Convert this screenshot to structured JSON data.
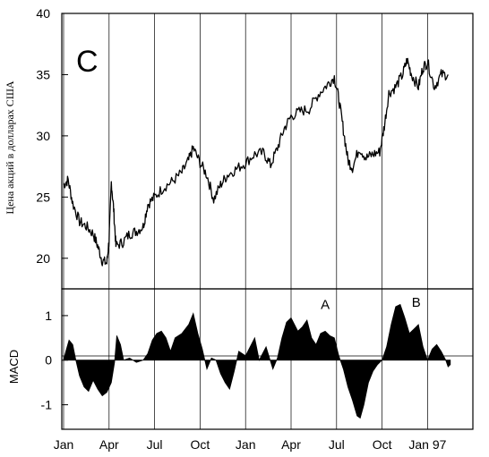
{
  "chart_data": [
    {
      "type": "line",
      "panel_label": "C",
      "ylabel": "Цена акций в долларах США",
      "ylim": [
        17.5,
        40
      ],
      "yticks": [
        "20",
        "25",
        "30",
        "35",
        "40"
      ],
      "x_categories": [
        "Jan",
        "Apr",
        "Jul",
        "Oct",
        "Jan",
        "Apr",
        "Jul",
        "Oct",
        "Jan 97"
      ],
      "grid": "vertical lines at quarter starts",
      "series": [
        {
          "values": [
            [
              0.0,
              26.0
            ],
            [
              0.1,
              26.4
            ],
            [
              0.2,
              24.5
            ],
            [
              0.35,
              23.0
            ],
            [
              0.5,
              22.6
            ],
            [
              0.65,
              22.0
            ],
            [
              0.75,
              21.0
            ],
            [
              0.85,
              19.8
            ],
            [
              0.95,
              19.6
            ],
            [
              1.0,
              21.5
            ],
            [
              1.05,
              26.2
            ],
            [
              1.1,
              24.0
            ],
            [
              1.15,
              21.0
            ],
            [
              1.3,
              21.3
            ],
            [
              1.45,
              22.0
            ],
            [
              1.6,
              22.2
            ],
            [
              1.75,
              22.6
            ],
            [
              1.85,
              24.4
            ],
            [
              2.0,
              25.0
            ],
            [
              2.2,
              25.8
            ],
            [
              2.4,
              26.3
            ],
            [
              2.6,
              27.0
            ],
            [
              2.75,
              28.0
            ],
            [
              2.85,
              29.0
            ],
            [
              3.0,
              27.8
            ],
            [
              3.15,
              26.8
            ],
            [
              3.3,
              24.8
            ],
            [
              3.45,
              26.0
            ],
            [
              3.6,
              26.8
            ],
            [
              3.8,
              27.3
            ],
            [
              4.0,
              27.8
            ],
            [
              4.2,
              28.5
            ],
            [
              4.4,
              28.6
            ],
            [
              4.55,
              27.6
            ],
            [
              4.7,
              29.0
            ],
            [
              4.85,
              30.6
            ],
            [
              5.0,
              31.6
            ],
            [
              5.2,
              32.0
            ],
            [
              5.4,
              32.2
            ],
            [
              5.6,
              33.4
            ],
            [
              5.8,
              34.2
            ],
            [
              5.95,
              34.8
            ],
            [
              6.05,
              33.0
            ],
            [
              6.15,
              30.5
            ],
            [
              6.25,
              28.0
            ],
            [
              6.35,
              27.4
            ],
            [
              6.5,
              29.0
            ],
            [
              6.65,
              28.2
            ],
            [
              6.8,
              28.5
            ],
            [
              6.95,
              28.7
            ],
            [
              7.05,
              30.8
            ],
            [
              7.15,
              33.5
            ],
            [
              7.3,
              34.0
            ],
            [
              7.45,
              35.0
            ],
            [
              7.55,
              36.2
            ],
            [
              7.65,
              35.0
            ],
            [
              7.8,
              34.0
            ],
            [
              7.9,
              35.6
            ],
            [
              8.0,
              36.0
            ],
            [
              8.15,
              34.0
            ],
            [
              8.3,
              35.0
            ],
            [
              8.45,
              35.0
            ]
          ]
        }
      ]
    },
    {
      "type": "area",
      "ylabel": "MACD",
      "ylim": [
        -1.55,
        1.6
      ],
      "yticks": [
        "1",
        "0",
        "-1"
      ],
      "x_categories": [
        "Jan",
        "Apr",
        "Jul",
        "Oct",
        "Jan",
        "Apr",
        "Jul",
        "Oct",
        "Jan 97"
      ],
      "annotations": [
        {
          "text": "A",
          "x": 5.75,
          "y": 1.15
        },
        {
          "text": "B",
          "x": 7.75,
          "y": 1.2
        }
      ],
      "series": [
        {
          "values": [
            [
              0.0,
              0.0
            ],
            [
              0.05,
              0.2
            ],
            [
              0.12,
              0.45
            ],
            [
              0.2,
              0.35
            ],
            [
              0.27,
              0.0
            ],
            [
              0.35,
              -0.35
            ],
            [
              0.45,
              -0.6
            ],
            [
              0.55,
              -0.7
            ],
            [
              0.65,
              -0.45
            ],
            [
              0.75,
              -0.65
            ],
            [
              0.85,
              -0.8
            ],
            [
              0.95,
              -0.72
            ],
            [
              1.05,
              -0.5
            ],
            [
              1.12,
              -0.05
            ],
            [
              1.17,
              0.55
            ],
            [
              1.25,
              0.35
            ],
            [
              1.32,
              0.0
            ],
            [
              1.45,
              0.05
            ],
            [
              1.6,
              -0.05
            ],
            [
              1.75,
              0.0
            ],
            [
              1.85,
              0.15
            ],
            [
              1.95,
              0.45
            ],
            [
              2.05,
              0.6
            ],
            [
              2.15,
              0.65
            ],
            [
              2.25,
              0.5
            ],
            [
              2.35,
              0.2
            ],
            [
              2.45,
              0.5
            ],
            [
              2.6,
              0.6
            ],
            [
              2.75,
              0.8
            ],
            [
              2.85,
              1.05
            ],
            [
              2.95,
              0.6
            ],
            [
              3.05,
              0.25
            ],
            [
              3.15,
              -0.2
            ],
            [
              3.25,
              0.05
            ],
            [
              3.35,
              0.0
            ],
            [
              3.45,
              -0.3
            ],
            [
              3.55,
              -0.5
            ],
            [
              3.65,
              -0.65
            ],
            [
              3.75,
              -0.25
            ],
            [
              3.85,
              0.2
            ],
            [
              4.0,
              0.1
            ],
            [
              4.1,
              0.3
            ],
            [
              4.2,
              0.5
            ],
            [
              4.3,
              0.0
            ],
            [
              4.45,
              0.3
            ],
            [
              4.6,
              -0.2
            ],
            [
              4.7,
              0.05
            ],
            [
              4.8,
              0.5
            ],
            [
              4.9,
              0.85
            ],
            [
              5.0,
              0.95
            ],
            [
              5.15,
              0.65
            ],
            [
              5.25,
              0.75
            ],
            [
              5.35,
              0.9
            ],
            [
              5.45,
              0.5
            ],
            [
              5.55,
              0.35
            ],
            [
              5.65,
              0.6
            ],
            [
              5.75,
              0.65
            ],
            [
              5.85,
              0.55
            ],
            [
              5.95,
              0.5
            ],
            [
              6.05,
              0.1
            ],
            [
              6.15,
              -0.2
            ],
            [
              6.25,
              -0.6
            ],
            [
              6.35,
              -0.9
            ],
            [
              6.45,
              -1.25
            ],
            [
              6.52,
              -1.3
            ],
            [
              6.6,
              -1.0
            ],
            [
              6.7,
              -0.5
            ],
            [
              6.8,
              -0.25
            ],
            [
              6.9,
              -0.1
            ],
            [
              7.0,
              0.0
            ],
            [
              7.1,
              0.3
            ],
            [
              7.2,
              0.8
            ],
            [
              7.3,
              1.2
            ],
            [
              7.4,
              1.25
            ],
            [
              7.5,
              0.95
            ],
            [
              7.6,
              0.6
            ],
            [
              7.7,
              0.7
            ],
            [
              7.8,
              0.8
            ],
            [
              7.9,
              0.3
            ],
            [
              8.0,
              0.0
            ],
            [
              8.1,
              0.25
            ],
            [
              8.2,
              0.35
            ],
            [
              8.3,
              0.2
            ],
            [
              8.4,
              0.0
            ],
            [
              8.45,
              -0.15
            ],
            [
              8.5,
              -0.1
            ]
          ]
        }
      ]
    }
  ],
  "colors": {
    "ink": "#000000",
    "background": "#ffffff"
  }
}
